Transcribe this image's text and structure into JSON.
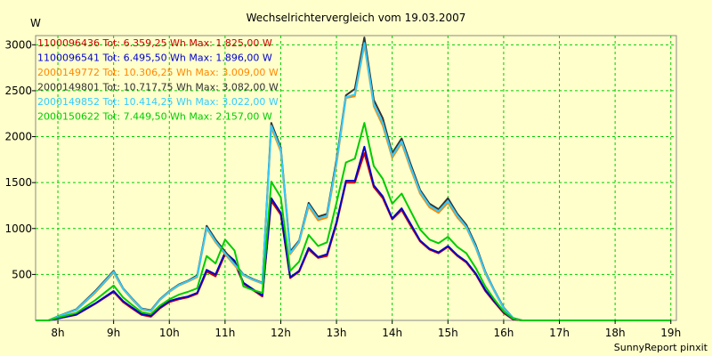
{
  "chart_data": {
    "type": "line",
    "title": "Wechselrichtervergleich vom 19.03.2007",
    "ylabel": "W",
    "xlabel": "",
    "credit": "SunnyReport pinxit",
    "ylim": [
      0,
      3100
    ],
    "xlim": [
      7.6,
      19.1
    ],
    "grid": true,
    "legend_position": "top-left",
    "x_ticks": [
      {
        "value": 8,
        "label": "8h"
      },
      {
        "value": 9,
        "label": "9h"
      },
      {
        "value": 10,
        "label": "10h"
      },
      {
        "value": 11,
        "label": "11h"
      },
      {
        "value": 12,
        "label": "12h"
      },
      {
        "value": 13,
        "label": "13h"
      },
      {
        "value": 14,
        "label": "14h"
      },
      {
        "value": 15,
        "label": "15h"
      },
      {
        "value": 16,
        "label": "16h"
      },
      {
        "value": 17,
        "label": "17h"
      },
      {
        "value": 18,
        "label": "18h"
      },
      {
        "value": 19,
        "label": "19h"
      }
    ],
    "y_ticks": [
      {
        "value": 500,
        "label": "500"
      },
      {
        "value": 1000,
        "label": "1000"
      },
      {
        "value": 1500,
        "label": "1500"
      },
      {
        "value": 2000,
        "label": "2000"
      },
      {
        "value": 2500,
        "label": "2500"
      },
      {
        "value": 3000,
        "label": "3000"
      }
    ],
    "x": [
      7.6,
      7.83,
      8.0,
      8.33,
      8.67,
      9.0,
      9.17,
      9.33,
      9.5,
      9.67,
      9.83,
      10.0,
      10.17,
      10.33,
      10.5,
      10.67,
      10.83,
      11.0,
      11.17,
      11.33,
      11.5,
      11.67,
      11.83,
      12.0,
      12.17,
      12.33,
      12.5,
      12.67,
      12.83,
      13.0,
      13.17,
      13.33,
      13.5,
      13.67,
      13.83,
      14.0,
      14.17,
      14.33,
      14.5,
      14.67,
      14.83,
      15.0,
      15.17,
      15.33,
      15.5,
      15.67,
      15.83,
      16.0,
      16.17,
      16.33,
      16.5,
      16.67,
      16.83,
      17.0,
      17.17,
      17.33,
      17.5,
      17.67,
      17.83,
      18.0,
      18.33,
      18.67,
      19.0
    ],
    "series": [
      {
        "name": "1100096436 Tot: 6.359,25 Wh Max: 1.825,00 W",
        "color": "#cc0000",
        "values": [
          0,
          0,
          20,
          60,
          180,
          310,
          200,
          130,
          60,
          40,
          130,
          200,
          230,
          250,
          290,
          530,
          480,
          720,
          630,
          400,
          330,
          260,
          1300,
          1150,
          460,
          530,
          770,
          680,
          700,
          1050,
          1500,
          1500,
          1820,
          1450,
          1330,
          1100,
          1200,
          1030,
          860,
          770,
          730,
          800,
          700,
          630,
          500,
          320,
          200,
          80,
          10,
          0,
          0,
          0,
          0,
          0,
          0,
          0,
          0,
          0,
          0,
          0,
          0,
          0,
          0
        ]
      },
      {
        "name": "1100096541 Tot: 6.495,50 Wh Max: 1.896,00 W",
        "color": "#0000cc",
        "values": [
          0,
          0,
          20,
          65,
          185,
          320,
          210,
          140,
          70,
          50,
          140,
          210,
          240,
          260,
          300,
          550,
          500,
          740,
          650,
          410,
          340,
          270,
          1330,
          1170,
          470,
          540,
          790,
          690,
          720,
          1070,
          1520,
          1520,
          1890,
          1470,
          1350,
          1110,
          1220,
          1050,
          870,
          780,
          740,
          810,
          710,
          640,
          510,
          330,
          210,
          90,
          15,
          0,
          0,
          0,
          0,
          0,
          0,
          0,
          0,
          0,
          0,
          0,
          0,
          0,
          0
        ]
      },
      {
        "name": "2000149772 Tot: 10.306,25 Wh Max: 3.009,00 W",
        "color": "#ff8800",
        "values": [
          0,
          0,
          40,
          110,
          300,
          520,
          340,
          230,
          120,
          100,
          220,
          310,
          380,
          420,
          470,
          1000,
          850,
          720,
          600,
          490,
          440,
          400,
          2100,
          1840,
          720,
          850,
          1240,
          1090,
          1120,
          1700,
          2420,
          2440,
          3000,
          2330,
          2120,
          1770,
          1930,
          1650,
          1380,
          1230,
          1170,
          1280,
          1120,
          1010,
          790,
          510,
          320,
          130,
          20,
          0,
          0,
          0,
          0,
          0,
          0,
          0,
          0,
          0,
          0,
          0,
          0,
          0,
          0
        ]
      },
      {
        "name": "2000149801 Tot: 10.717,75 Wh Max: 3.082,00 W",
        "color": "#333333",
        "values": [
          0,
          0,
          45,
          120,
          320,
          540,
          350,
          240,
          130,
          110,
          230,
          320,
          390,
          430,
          490,
          1030,
          880,
          750,
          620,
          500,
          450,
          410,
          2150,
          1880,
          750,
          870,
          1280,
          1130,
          1160,
          1750,
          2450,
          2520,
          3080,
          2400,
          2200,
          1820,
          1980,
          1700,
          1420,
          1270,
          1210,
          1330,
          1160,
          1040,
          820,
          530,
          330,
          140,
          25,
          0,
          0,
          0,
          0,
          0,
          0,
          0,
          0,
          0,
          0,
          0,
          0,
          0,
          0
        ]
      },
      {
        "name": "2000149852 Tot: 10.414,25 Wh Max: 3.022,00 W",
        "color": "#33ccff",
        "values": [
          0,
          0,
          42,
          115,
          310,
          530,
          345,
          235,
          125,
          105,
          225,
          315,
          385,
          425,
          480,
          1010,
          860,
          730,
          610,
          495,
          445,
          405,
          2120,
          1860,
          730,
          860,
          1260,
          1110,
          1140,
          1720,
          2430,
          2460,
          3020,
          2350,
          2150,
          1790,
          1950,
          1670,
          1400,
          1250,
          1190,
          1300,
          1140,
          1020,
          800,
          520,
          325,
          135,
          22,
          0,
          0,
          0,
          0,
          0,
          0,
          0,
          0,
          0,
          0,
          0,
          0,
          0,
          0
        ]
      },
      {
        "name": "2000150622 Tot: 7.449,50 Wh Max: 2.157,00 W",
        "color": "#00cc00",
        "values": [
          0,
          0,
          30,
          80,
          220,
          380,
          250,
          170,
          90,
          70,
          160,
          230,
          280,
          310,
          350,
          700,
          620,
          880,
          760,
          370,
          330,
          300,
          1510,
          1340,
          540,
          640,
          930,
          810,
          850,
          1280,
          1720,
          1760,
          2150,
          1680,
          1540,
          1270,
          1380,
          1190,
          990,
          880,
          840,
          910,
          800,
          730,
          570,
          370,
          230,
          100,
          18,
          0,
          0,
          0,
          0,
          0,
          0,
          0,
          0,
          0,
          0,
          0,
          0,
          0,
          0
        ]
      }
    ]
  }
}
